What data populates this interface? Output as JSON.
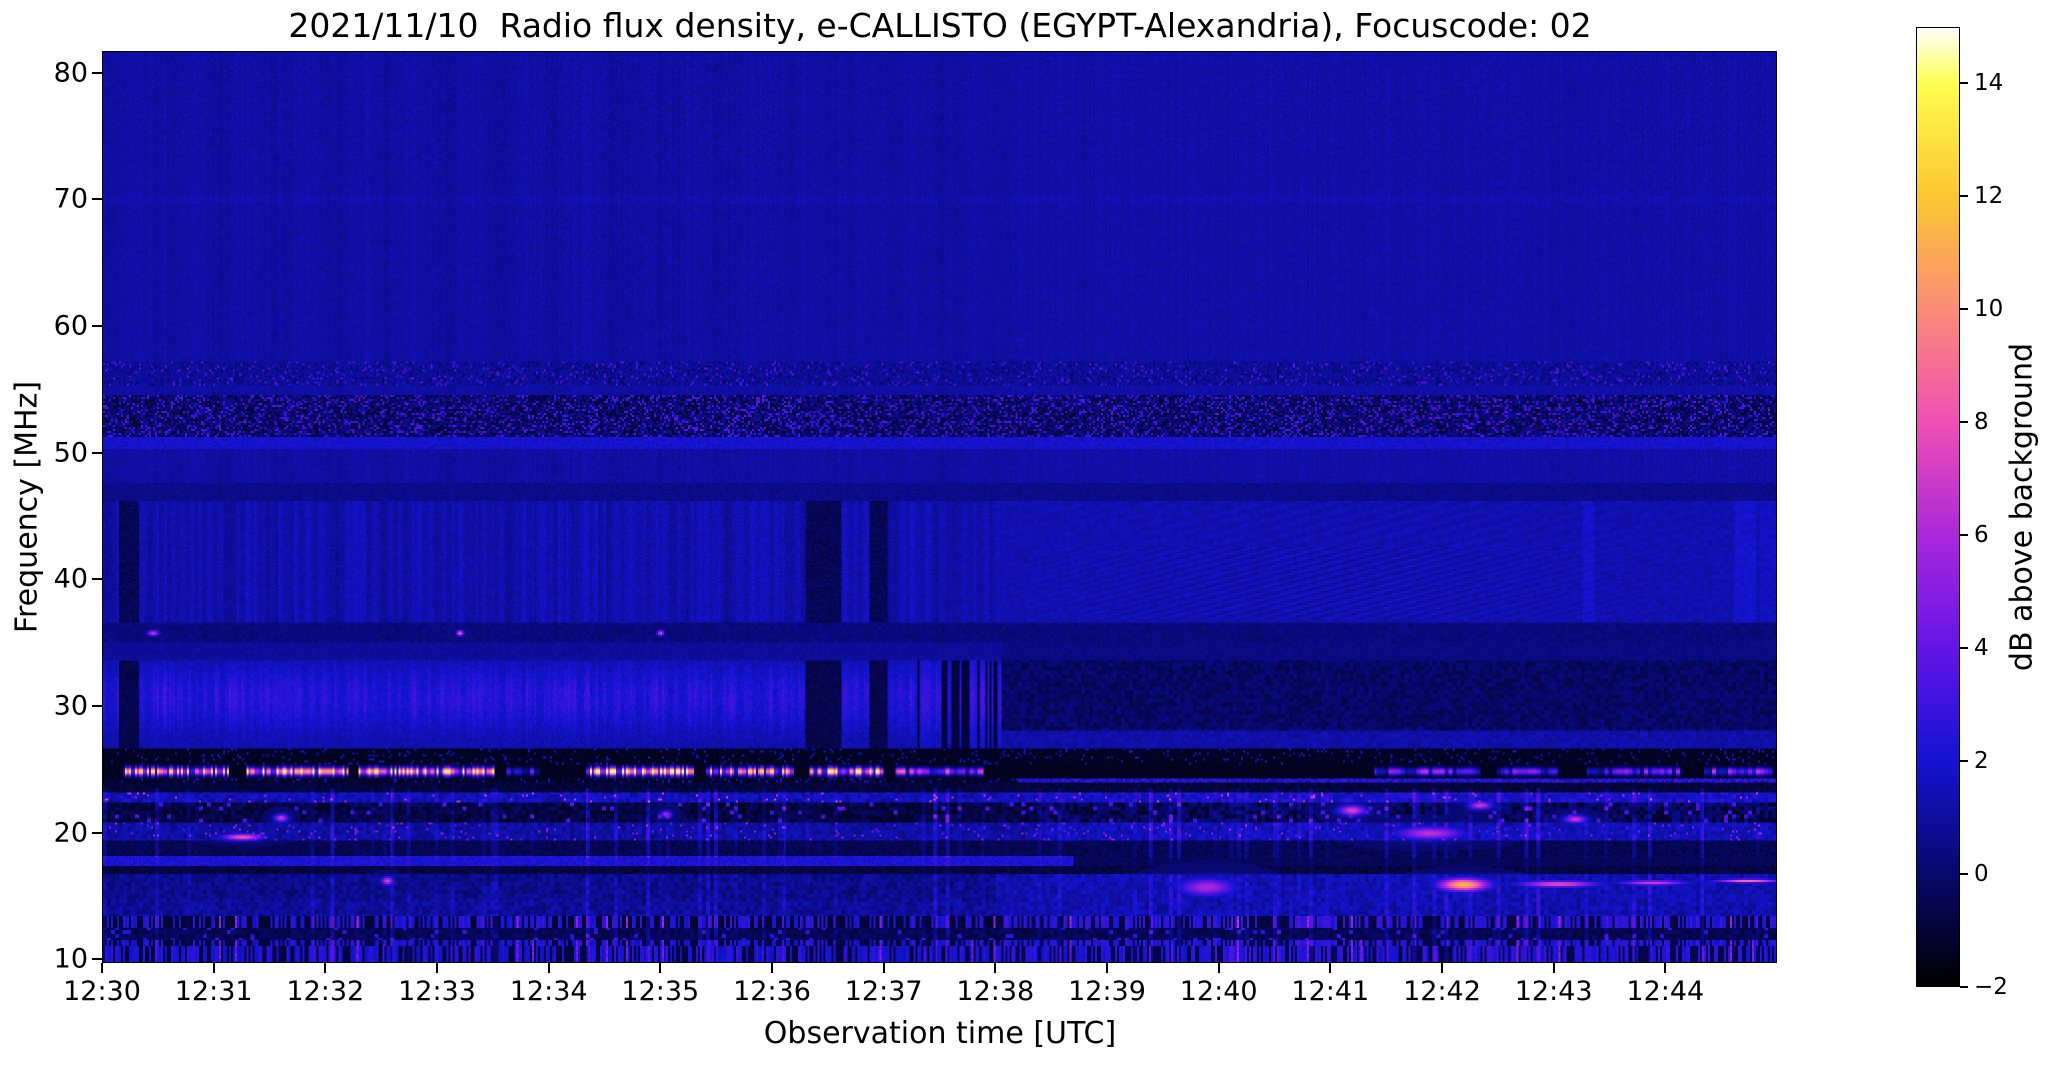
{
  "chart_data": {
    "type": "heatmap",
    "subtype": "radio-spectrogram",
    "title": "2021/11/10  Radio flux density, e-CALLISTO (EGYPT-Alexandria), Focuscode: 02",
    "xlabel": "Observation time [UTC]",
    "ylabel": "Frequency [MHz]",
    "x_ticks": [
      "12:30",
      "12:31",
      "12:32",
      "12:33",
      "12:34",
      "12:35",
      "12:36",
      "12:37",
      "12:38",
      "12:39",
      "12:40",
      "12:41",
      "12:42",
      "12:43",
      "12:44"
    ],
    "x_range_minutes": [
      0,
      15
    ],
    "x_start_utc": "12:30",
    "y_ticks": [
      80,
      70,
      60,
      50,
      40,
      30,
      20,
      10
    ],
    "y_range_mhz": [
      9.7,
      81.7
    ],
    "grid": false,
    "colorbar": {
      "label": "dB above background",
      "tick_labels": [
        "14",
        "12",
        "10",
        "8",
        "6",
        "4",
        "2",
        "0",
        "−2"
      ],
      "tick_values": [
        14,
        12,
        10,
        8,
        6,
        4,
        2,
        0,
        -2
      ],
      "range": [
        -2,
        15
      ],
      "position": "right",
      "stops": [
        [
          -2,
          "#000000"
        ],
        [
          0,
          "#08086e"
        ],
        [
          2,
          "#1414d2"
        ],
        [
          4,
          "#6414e6"
        ],
        [
          6,
          "#aa28dc"
        ],
        [
          8,
          "#f050b4"
        ],
        [
          10,
          "#fa8c78"
        ],
        [
          12,
          "#fbc732"
        ],
        [
          14,
          "#fdfd4e"
        ],
        [
          15,
          "#ffffff"
        ]
      ]
    },
    "transition_time_min": 8.05,
    "bands": [
      {
        "style": "speckle",
        "f": [
          55.4,
          57.2
        ],
        "base": 0.95,
        "noise": 0.6,
        "p_dark": 0.25,
        "dark": -0.85,
        "p_bright": 0.07,
        "bright": 1.6
      },
      {
        "style": "speckle",
        "f": [
          51.2,
          54.6
        ],
        "base": 0.5,
        "noise": 0.8,
        "p_dark": 0.4,
        "dark": -1.3,
        "p_bright": 0.18,
        "bright": 1.9
      },
      {
        "style": "flat",
        "f": [
          50.3,
          51.2
        ],
        "base": 1.9,
        "noise": 0.8
      },
      {
        "style": "bg",
        "f": [
          47.6,
          82.0
        ],
        "base": 1.12,
        "noise": 0.5,
        "faint_line_f": 70.0
      },
      {
        "style": "flat",
        "f": [
          46.2,
          47.6
        ],
        "base": 0.52,
        "noise": 0.6
      },
      {
        "style": "vstripe",
        "f": [
          36.6,
          46.2
        ],
        "t": [
          0,
          8.05
        ],
        "base": 1.35,
        "noise": 0.6,
        "amp": 0.5
      },
      {
        "style": "herring",
        "f": [
          36.6,
          46.2
        ],
        "t": [
          8.05,
          15
        ],
        "base": 1.3,
        "noise": 0.45,
        "amp": 0.5,
        "center": 11.0,
        "width": 2.4
      },
      {
        "style": "darkband",
        "f": [
          35.0,
          36.6
        ],
        "base": 0.28,
        "noise": 0.5
      },
      {
        "style": "flat",
        "f": [
          33.5,
          35.0
        ],
        "t": [
          0,
          8.05
        ],
        "base": 0.85,
        "noise": 0.6
      },
      {
        "style": "flat",
        "f": [
          33.5,
          35.0
        ],
        "t": [
          8.05,
          15
        ],
        "base": 0.4,
        "noise": 0.6
      },
      {
        "style": "bright_vstripe",
        "f": [
          26.6,
          33.5
        ],
        "t": [
          0,
          8.05
        ],
        "base": 1.1,
        "peak_f": 30.6,
        "sigma": 2.6,
        "amp": 1.3,
        "noise": 0.7
      },
      {
        "style": "mottle",
        "f": [
          28.0,
          33.5
        ],
        "t": [
          8.05,
          15
        ],
        "base": -0.15,
        "noise": 1.1
      },
      {
        "style": "mottle",
        "f": [
          26.6,
          28.0
        ],
        "t": [
          8.05,
          15
        ],
        "base": 1.15,
        "noise": 0.7
      },
      {
        "style": "speckle",
        "f": [
          25.3,
          26.6
        ],
        "base": -1.35,
        "noise": 0.5,
        "p_dark": 0.0,
        "dark": 0,
        "p_bright": 0.07,
        "bright": 2.2
      },
      {
        "style": "segline",
        "f": [
          24.3,
          25.3
        ],
        "fc": 24.78,
        "sigma": 0.3
      },
      {
        "style": "flat",
        "f": [
          23.9,
          24.3
        ],
        "t": [
          8.2,
          15
        ],
        "base": 2.2,
        "noise": 2.2
      },
      {
        "style": "speckle",
        "f": [
          23.9,
          24.3
        ],
        "t": [
          0,
          8.2
        ],
        "base": -1.2,
        "noise": 0.8,
        "p_dark": 0.0,
        "dark": 0,
        "p_bright": 0.1,
        "bright": 2.2
      },
      {
        "style": "flat",
        "f": [
          23.2,
          23.9
        ],
        "base": -0.9,
        "noise": 0.9
      },
      {
        "style": "row",
        "f": [
          22.4,
          23.2
        ],
        "base": 1.5,
        "noise": 1.4,
        "boost_t": 8.4,
        "boost": 0.4,
        "p_hot": 0.03,
        "hot": 4.0
      },
      {
        "style": "mottle2",
        "f": [
          20.8,
          22.4
        ],
        "base": -0.55,
        "noise": 1.0,
        "boost_t": 8.4,
        "boost": 0.55,
        "p_hot": 0.05,
        "hot": 3.0,
        "p_dark": 0.3,
        "dark": -1.4
      },
      {
        "style": "row",
        "f": [
          19.3,
          20.8
        ],
        "base": 1.0,
        "noise": 1.2,
        "boost_t": 8.4,
        "boost": 0.5,
        "p_hot": 0.035,
        "hot": 2.8
      },
      {
        "style": "flat",
        "f": [
          18.0,
          19.3
        ],
        "base": -0.5,
        "noise": 0.9
      },
      {
        "style": "hline",
        "f": [
          17.3,
          18.0
        ],
        "t_end": 8.7,
        "base_on": 2.1,
        "base_off": -0.7,
        "noise": 0.9
      },
      {
        "style": "flat",
        "f": [
          16.6,
          17.3
        ],
        "base": -0.8,
        "noise": 0.8
      },
      {
        "style": "mottle",
        "f": [
          14.6,
          16.6
        ],
        "t": [
          0,
          8
        ],
        "base": 0.55,
        "noise": 1.2
      },
      {
        "style": "mottle",
        "f": [
          14.6,
          16.6
        ],
        "t": [
          8,
          15
        ],
        "base": 1.3,
        "noise": 1.2
      },
      {
        "style": "mottle",
        "f": [
          13.4,
          14.6
        ],
        "t": [
          0,
          8
        ],
        "base": 0.8,
        "noise": 1.3
      },
      {
        "style": "mottle",
        "f": [
          13.4,
          14.6
        ],
        "t": [
          8,
          15
        ],
        "base": 1.25,
        "noise": 1.3
      },
      {
        "style": "cstripe",
        "f": [
          12.4,
          13.4
        ],
        "duty": 0.45,
        "lo": -1.3,
        "hi": 1.7,
        "p_hot": 0.03,
        "hot": 4.5
      },
      {
        "style": "mottle2",
        "f": [
          11.4,
          12.4
        ],
        "base": -0.45,
        "noise": 0.9,
        "p_hot": 0.07,
        "hot": 2.2,
        "p_dark": 0.0,
        "dark": 0
      },
      {
        "style": "cstripe",
        "f": [
          9.0,
          11.4
        ],
        "duty": 0.42,
        "lo": -1.1,
        "hi": 1.5,
        "p_hot": 0.035,
        "hot": 3.5
      }
    ],
    "features": {
      "rfi_burst_line_24mhz_segments": [
        [
          0.18,
          1.12,
          12
        ],
        [
          1.28,
          2.2,
          14.5
        ],
        [
          2.3,
          3.5,
          13.5
        ],
        [
          3.62,
          3.92,
          7
        ],
        [
          4.33,
          5.3,
          14.5
        ],
        [
          5.4,
          6.2,
          12
        ],
        [
          6.33,
          7.0,
          13.5
        ],
        [
          7.1,
          7.9,
          11
        ],
        [
          11.4,
          12.35,
          8.5
        ],
        [
          12.5,
          13.05,
          7.5
        ],
        [
          13.3,
          14.15,
          8
        ],
        [
          14.35,
          14.98,
          9
        ]
      ],
      "dark_lanes_min": [
        [
          0.14,
          0.32
        ],
        [
          6.3,
          6.62
        ],
        [
          6.88,
          7.04
        ]
      ],
      "hotspots": [
        [
          1.25,
          19.6,
          0.18,
          0.25,
          8.5
        ],
        [
          1.6,
          21.1,
          0.06,
          0.3,
          7
        ],
        [
          2.55,
          16.1,
          0.05,
          0.3,
          7.5
        ],
        [
          5.05,
          21.4,
          0.05,
          0.25,
          6
        ],
        [
          9.9,
          15.6,
          0.25,
          0.7,
          6
        ],
        [
          11.2,
          21.7,
          0.12,
          0.4,
          7.5
        ],
        [
          11.9,
          19.9,
          0.3,
          0.5,
          6.5
        ],
        [
          12.2,
          15.8,
          0.22,
          0.5,
          11.5
        ],
        [
          12.35,
          22.1,
          0.1,
          0.3,
          7
        ],
        [
          13.05,
          15.85,
          0.35,
          0.25,
          8
        ],
        [
          13.9,
          15.95,
          0.3,
          0.2,
          7
        ],
        [
          14.75,
          16.1,
          0.28,
          0.15,
          9
        ],
        [
          13.2,
          21.0,
          0.1,
          0.3,
          7
        ],
        [
          3.2,
          35.7,
          0.03,
          0.2,
          9
        ],
        [
          0.45,
          35.7,
          0.05,
          0.2,
          7
        ],
        [
          5.0,
          35.7,
          0.03,
          0.2,
          8
        ]
      ]
    }
  }
}
